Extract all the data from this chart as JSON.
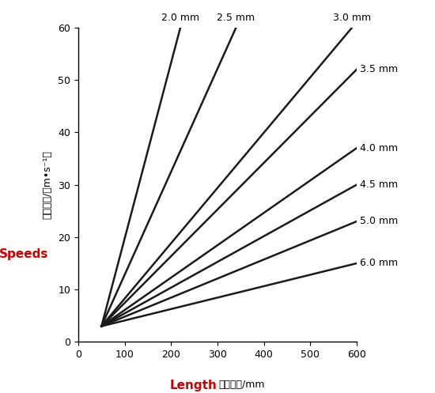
{
  "lines": [
    {
      "label": "2.0 mm",
      "x_start": 50,
      "y_start": 3.0,
      "x_end": 220,
      "y_end": 60,
      "label_pos": "top"
    },
    {
      "label": "2.5 mm",
      "x_start": 50,
      "y_start": 3.0,
      "x_end": 340,
      "y_end": 60,
      "label_pos": "top"
    },
    {
      "label": "3.0 mm",
      "x_start": 50,
      "y_start": 3.0,
      "x_end": 590,
      "y_end": 60,
      "label_pos": "top"
    },
    {
      "label": "3.5 mm",
      "x_start": 50,
      "y_start": 3.0,
      "x_end": 600,
      "y_end": 52,
      "label_pos": "right"
    },
    {
      "label": "4.0 mm",
      "x_start": 50,
      "y_start": 3.0,
      "x_end": 600,
      "y_end": 37,
      "label_pos": "right"
    },
    {
      "label": "4.5 mm",
      "x_start": 50,
      "y_start": 3.0,
      "x_end": 600,
      "y_end": 30,
      "label_pos": "right"
    },
    {
      "label": "5.0 mm",
      "x_start": 50,
      "y_start": 3.0,
      "x_end": 600,
      "y_end": 23,
      "label_pos": "right"
    },
    {
      "label": "6.0 mm",
      "x_start": 50,
      "y_start": 3.0,
      "x_end": 600,
      "y_end": 15,
      "label_pos": "right"
    }
  ],
  "xlabel_en": "Length",
  "xlabel_cn": "充填长度/mm",
  "ylabel_cn": "充填速度/（m•s⁻¹）",
  "ylabel_en": "Speeds",
  "xlim": [
    0,
    600
  ],
  "ylim": [
    0,
    60
  ],
  "xticks": [
    0,
    100,
    200,
    300,
    400,
    500,
    600
  ],
  "yticks": [
    0,
    10,
    20,
    30,
    40,
    50,
    60
  ],
  "line_color": "#1a1a1a",
  "line_width": 1.8,
  "label_color_red": "#cc0000",
  "background_color": "#ffffff"
}
